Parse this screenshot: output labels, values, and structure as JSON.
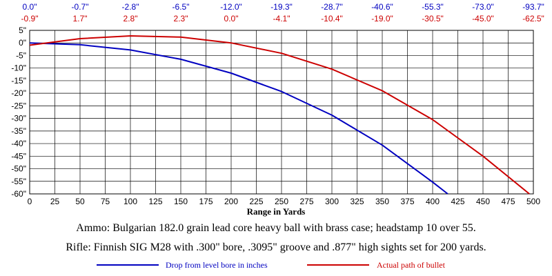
{
  "chart_data": {
    "type": "line",
    "xlabel": "Range in Yards",
    "ylabel": "",
    "xlim": [
      0,
      500
    ],
    "ylim": [
      -60,
      5
    ],
    "grid": true,
    "x_ticks": [
      "0",
      "25",
      "50",
      "75",
      "100",
      "125",
      "150",
      "175",
      "200",
      "225",
      "250",
      "275",
      "300",
      "325",
      "350",
      "375",
      "400",
      "425",
      "450",
      "475",
      "500"
    ],
    "y_ticks": [
      "5\"",
      "0\"",
      "-5\"",
      "-10\"",
      "-15\"",
      "-20\"",
      "-25\"",
      "-30\"",
      "-35\"",
      "-40\"",
      "-45\"",
      "-50\"",
      "-55\"",
      "-60\""
    ],
    "top_labels_drop": [
      "0.0\"",
      "-0.7\"",
      "-2.8\"",
      "-6.5\"",
      "-12.0\"",
      "-19.3\"",
      "-28.7\"",
      "-40.6\"",
      "-55.3\"",
      "-73.0\"",
      "-93.7\""
    ],
    "top_labels_path": [
      "-0.9\"",
      "1.7\"",
      "2.8\"",
      "2.3\"",
      "0.0\"",
      "-4.1\"",
      "-10.4\"",
      "-19.0\"",
      "-30.5\"",
      "-45.0\"",
      "-62.5\""
    ],
    "series": [
      {
        "name": "Drop from level bore in inches",
        "color": "#0000c0",
        "x": [
          0,
          50,
          100,
          150,
          200,
          250,
          300,
          350,
          400,
          415
        ],
        "y": [
          0.0,
          -0.7,
          -2.8,
          -6.5,
          -12.0,
          -19.3,
          -28.7,
          -40.6,
          -55.3,
          -60.0
        ]
      },
      {
        "name": "Actual path of bullet",
        "color": "#cc0000",
        "x": [
          0,
          50,
          100,
          150,
          200,
          250,
          300,
          350,
          400,
          450,
          496
        ],
        "y": [
          -0.9,
          1.7,
          2.8,
          2.3,
          0.0,
          -4.1,
          -10.4,
          -19.0,
          -30.5,
          -45.0,
          -60.0
        ]
      }
    ]
  },
  "notes": {
    "ammo": "Ammo:  Bulgarian 182.0 grain lead core heavy ball with brass case; headstamp 10 over 55.",
    "rifle": "Rifle:  Finnish SIG M28 with .300\" bore, .3095\" groove and .877\" high sights set for 200 yards."
  },
  "colors": {
    "drop": "#0000c0",
    "path": "#cc0000",
    "grid": "#000000"
  }
}
